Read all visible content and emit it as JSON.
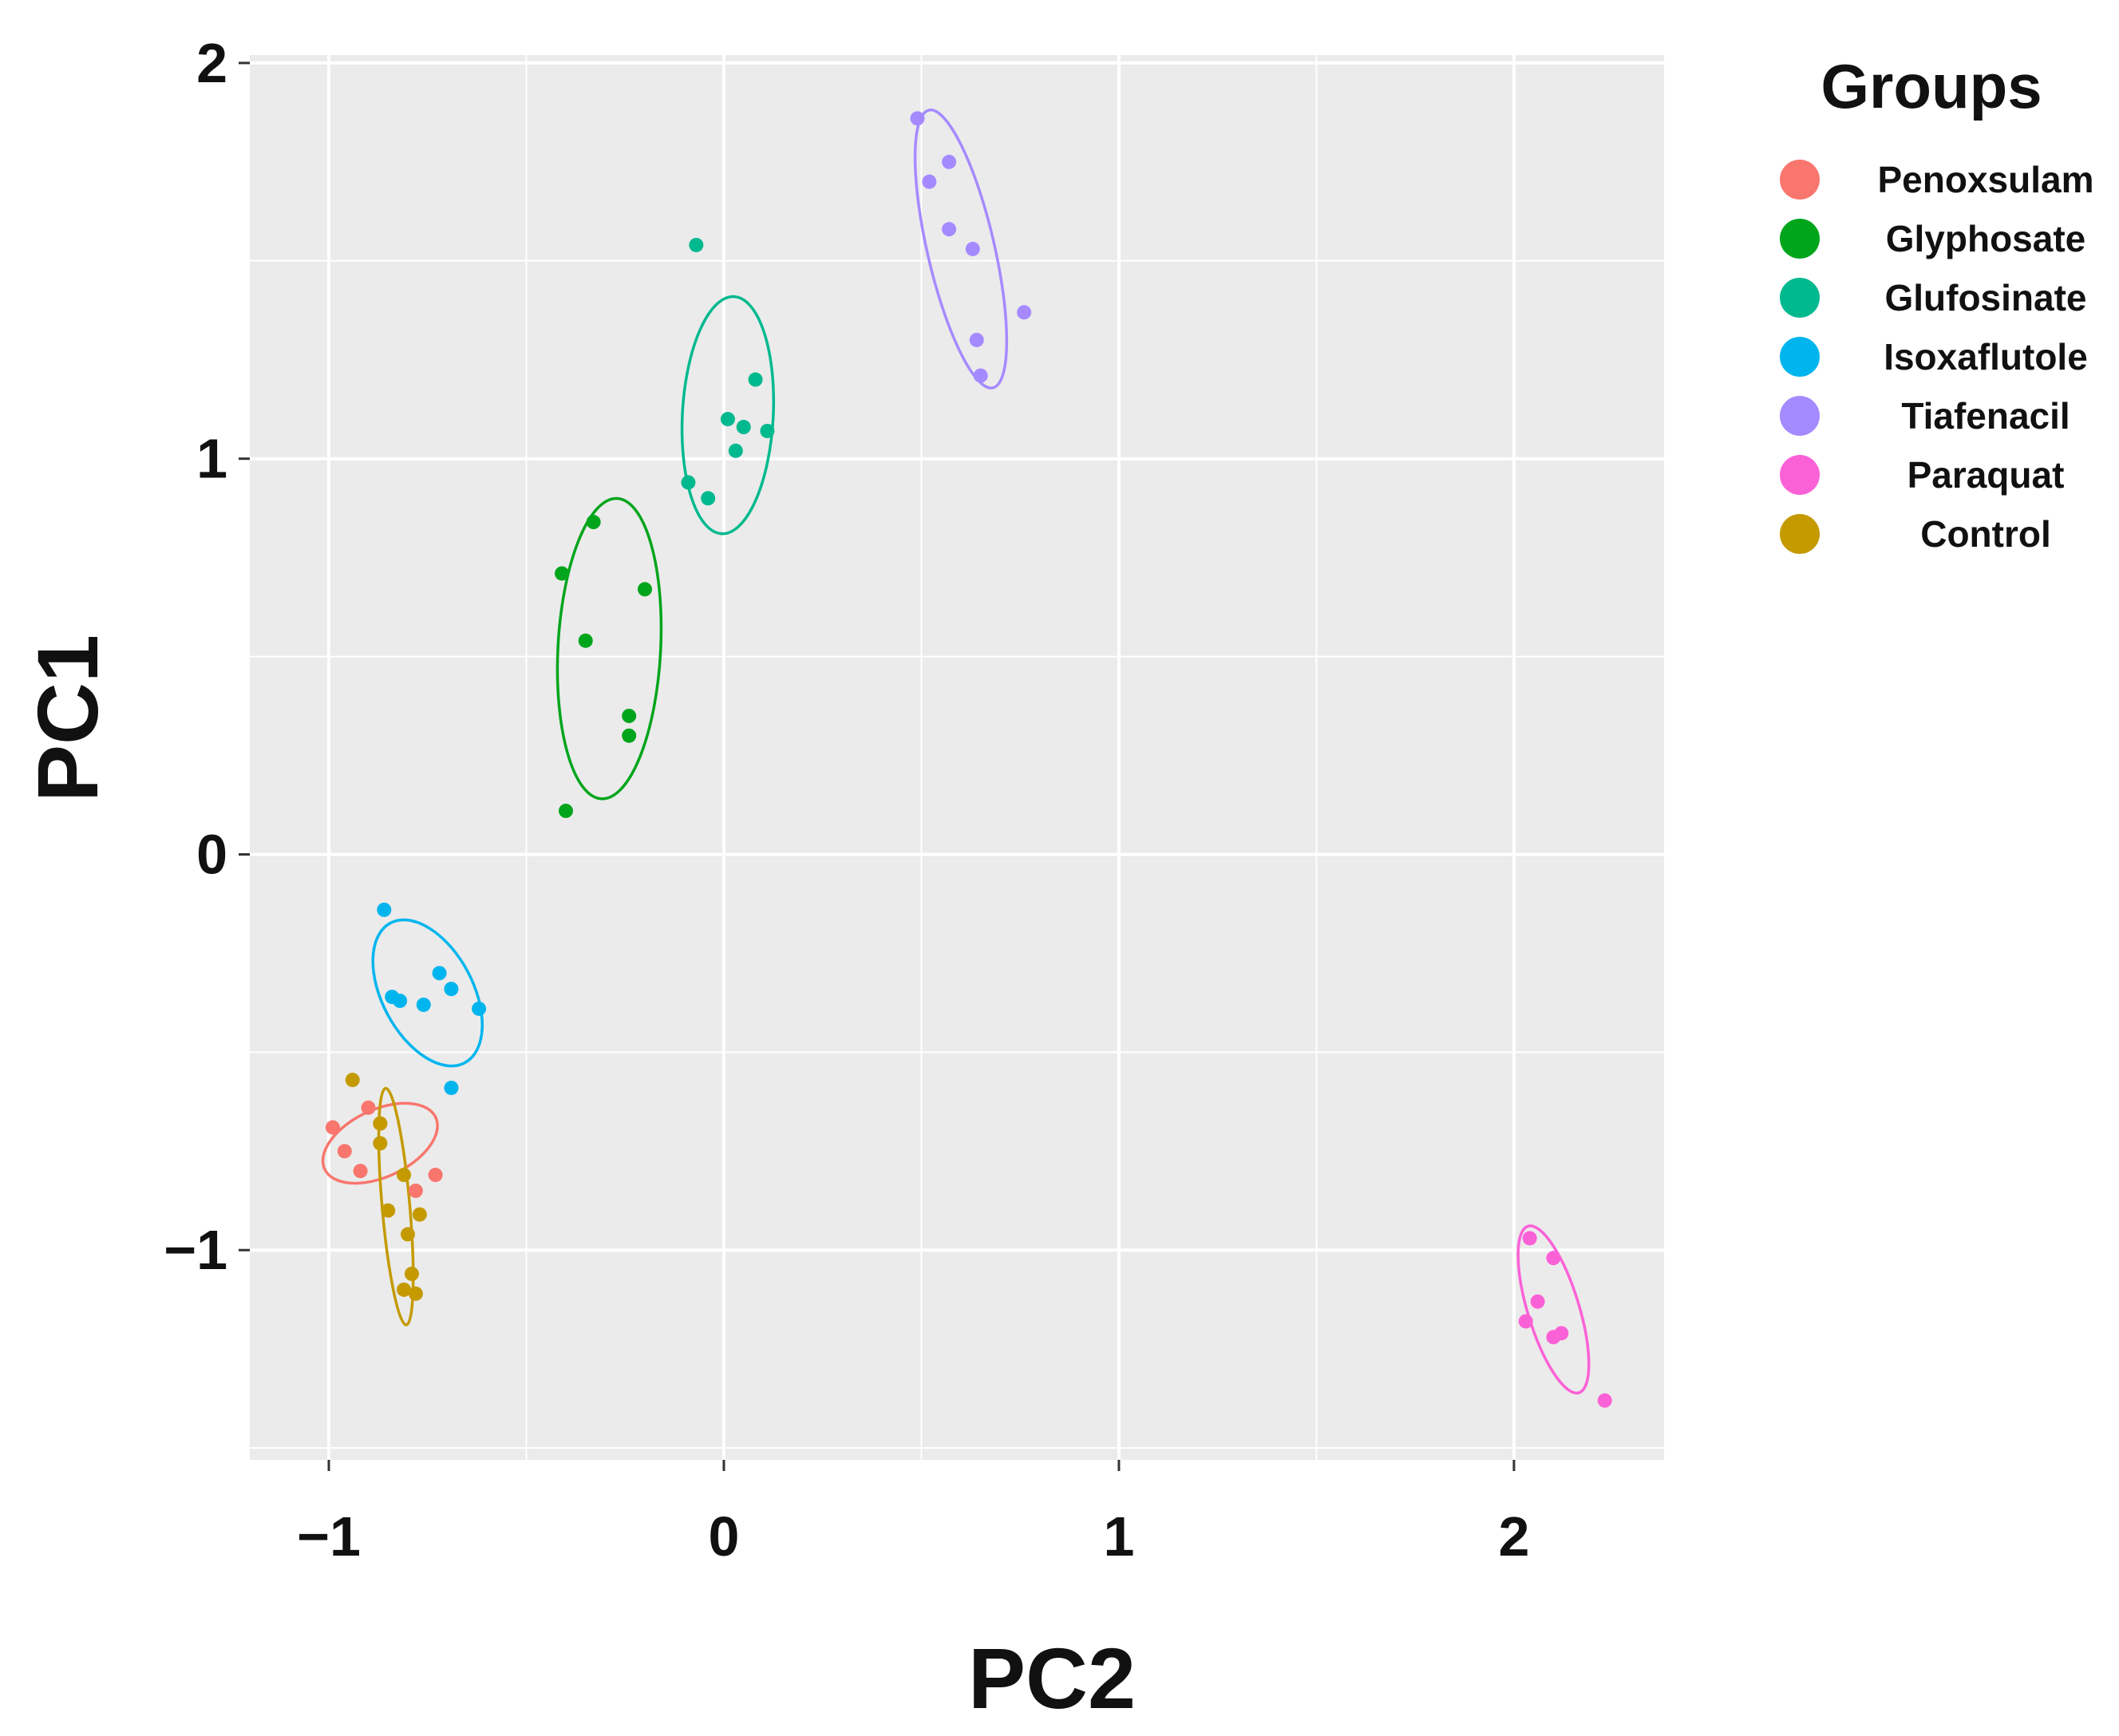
{
  "chart_data": {
    "type": "scatter",
    "title": "",
    "xlabel": "PC2",
    "ylabel": "PC1",
    "xlim": [
      -1.2,
      2.38
    ],
    "ylim": [
      -1.53,
      2.02
    ],
    "xticks": [
      -1,
      0,
      1,
      2
    ],
    "yticks": [
      -1,
      0,
      1,
      2
    ],
    "xtick_labels": [
      "−1",
      "0",
      "1",
      "2"
    ],
    "ytick_labels": [
      "−1",
      "0",
      "1",
      "2"
    ],
    "grid": true,
    "legend_title": "Groups",
    "legend_position": "right",
    "series": [
      {
        "name": "Penoxsulam",
        "color": "#F8766D",
        "points": [
          [
            -0.99,
            -0.69
          ],
          [
            -0.96,
            -0.75
          ],
          [
            -0.92,
            -0.8
          ],
          [
            -0.9,
            -0.64
          ],
          [
            -0.87,
            -0.68
          ],
          [
            -0.78,
            -0.85
          ],
          [
            -0.73,
            -0.81
          ]
        ],
        "ellipse": {
          "cx": -0.87,
          "cy": -0.73,
          "rx": 0.155,
          "ry": 0.085,
          "angle_deg": -25
        }
      },
      {
        "name": "Glyphosate",
        "color": "#00A51C",
        "points": [
          [
            -0.41,
            0.71
          ],
          [
            -0.33,
            0.84
          ],
          [
            -0.35,
            0.54
          ],
          [
            -0.2,
            0.67
          ],
          [
            -0.24,
            0.35
          ],
          [
            -0.24,
            0.3
          ],
          [
            -0.4,
            0.11
          ]
        ],
        "ellipse": {
          "cx": -0.29,
          "cy": 0.52,
          "rx": 0.13,
          "ry": 0.38,
          "angle_deg": 3
        }
      },
      {
        "name": "Glufosinate",
        "color": "#00B98E",
        "points": [
          [
            -0.07,
            1.54
          ],
          [
            0.08,
            1.2
          ],
          [
            0.01,
            1.1
          ],
          [
            0.05,
            1.08
          ],
          [
            0.11,
            1.07
          ],
          [
            0.03,
            1.02
          ],
          [
            -0.09,
            0.94
          ],
          [
            -0.04,
            0.9
          ]
        ],
        "ellipse": {
          "cx": 0.01,
          "cy": 1.11,
          "rx": 0.115,
          "ry": 0.3,
          "angle_deg": 3
        }
      },
      {
        "name": "Isoxaflutole",
        "color": "#00B5EE",
        "points": [
          [
            -0.86,
            -0.14
          ],
          [
            -0.72,
            -0.3
          ],
          [
            -0.69,
            -0.34
          ],
          [
            -0.84,
            -0.36
          ],
          [
            -0.82,
            -0.37
          ],
          [
            -0.76,
            -0.38
          ],
          [
            -0.62,
            -0.39
          ],
          [
            -0.69,
            -0.59
          ]
        ],
        "ellipse": {
          "cx": -0.75,
          "cy": -0.35,
          "rx": 0.115,
          "ry": 0.2,
          "angle_deg": -28
        }
      },
      {
        "name": "Tiafenacil",
        "color": "#A58AFF",
        "points": [
          [
            0.49,
            1.86
          ],
          [
            0.52,
            1.7
          ],
          [
            0.57,
            1.75
          ],
          [
            0.57,
            1.58
          ],
          [
            0.63,
            1.53
          ],
          [
            0.76,
            1.37
          ],
          [
            0.64,
            1.3
          ],
          [
            0.65,
            1.21
          ]
        ],
        "ellipse": {
          "cx": 0.6,
          "cy": 1.53,
          "rx": 0.085,
          "ry": 0.36,
          "angle_deg": -13
        }
      },
      {
        "name": "Paraquat",
        "color": "#FB61D7",
        "points": [
          [
            2.04,
            -0.97
          ],
          [
            2.1,
            -1.02
          ],
          [
            2.06,
            -1.13
          ],
          [
            2.03,
            -1.18
          ],
          [
            2.1,
            -1.22
          ],
          [
            2.12,
            -1.21
          ],
          [
            2.23,
            -1.38
          ]
        ],
        "ellipse": {
          "cx": 2.1,
          "cy": -1.15,
          "rx": 0.065,
          "ry": 0.22,
          "angle_deg": -17
        }
      },
      {
        "name": "Control",
        "color": "#C49A00",
        "points": [
          [
            -0.94,
            -0.57
          ],
          [
            -0.87,
            -0.68
          ],
          [
            -0.87,
            -0.73
          ],
          [
            -0.81,
            -0.81
          ],
          [
            -0.85,
            -0.9
          ],
          [
            -0.77,
            -0.91
          ],
          [
            -0.8,
            -0.96
          ],
          [
            -0.79,
            -1.06
          ],
          [
            -0.81,
            -1.1
          ],
          [
            -0.78,
            -1.11
          ]
        ],
        "ellipse": {
          "cx": -0.83,
          "cy": -0.89,
          "rx": 0.035,
          "ry": 0.3,
          "angle_deg": -5
        }
      }
    ]
  }
}
